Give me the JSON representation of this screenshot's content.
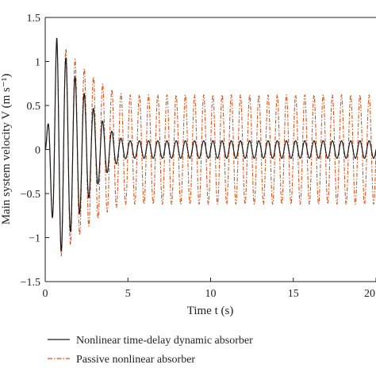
{
  "chart_data": {
    "type": "line",
    "title": "",
    "xlabel": "Time t (s)",
    "ylabel": "Main system velocity V (m s⁻¹)",
    "xlim": [
      0,
      20
    ],
    "ylim": [
      -1.5,
      1.5
    ],
    "x_ticks": [
      "0",
      "5",
      "10",
      "15",
      "20"
    ],
    "y_ticks": [
      "1.5",
      "1",
      "0.5",
      "0",
      "−0.5",
      "−1",
      "−1.5"
    ],
    "grid": false,
    "legend_position": "bottom",
    "series": [
      {
        "name": "Nonlinear time-delay dynamic absorber",
        "color": "#1a1a1a",
        "style": "solid",
        "signal": {
          "frequency_hz": 1.8,
          "initial_amplitude": 1.27,
          "envelope_peak_time_s": 0.7,
          "settled_amplitude": 0.1,
          "settled_from_s": 5
        }
      },
      {
        "name": "Passive nonlinear absorber",
        "color": "#d9531e",
        "style": "dash-dot",
        "signal": {
          "frequency_hz": 1.8,
          "initial_amplitude": 1.27,
          "envelope_peak_time_s": 0.7,
          "settled_amplitude": 0.62,
          "settled_from_s": 5
        }
      }
    ]
  }
}
